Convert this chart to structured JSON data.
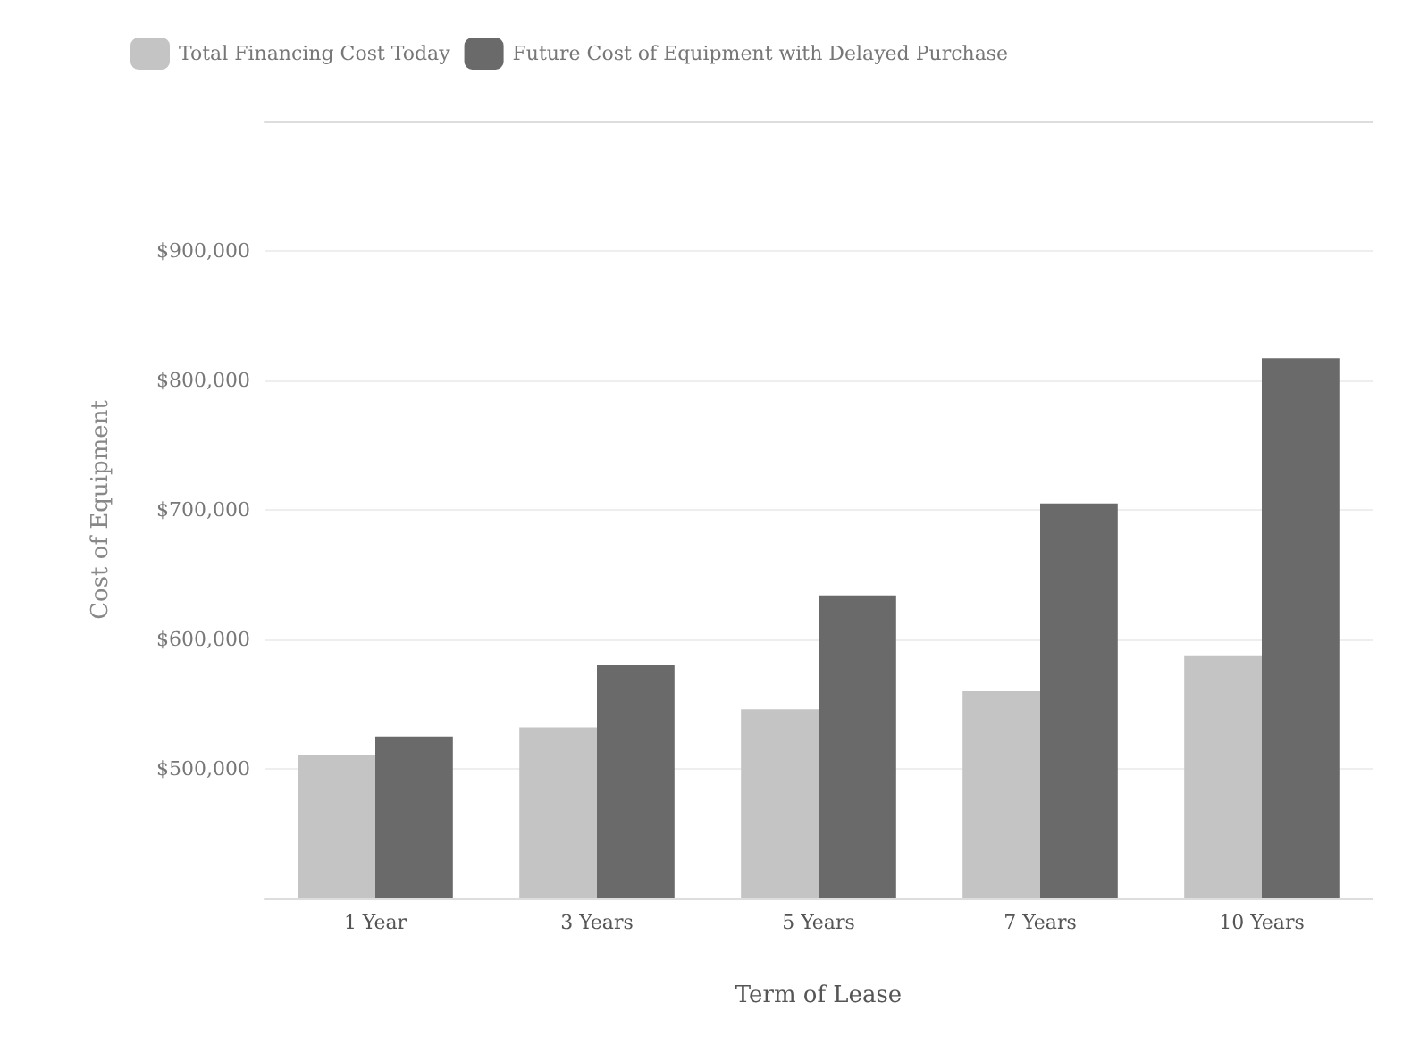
{
  "chart_data": {
    "type": "bar",
    "xlabel": "Term of Lease",
    "ylabel": "Cost of Equipment",
    "categories": [
      "1 Year",
      "3 Years",
      "5 Years",
      "7 Years",
      "10 Years"
    ],
    "series": [
      {
        "name": "Total Financing Cost Today",
        "color": "#c4c4c4",
        "values": [
          511000,
          532000,
          546000,
          560000,
          587000
        ]
      },
      {
        "name": "Future Cost of Equipment with Delayed Purchase",
        "color": "#6a6a6a",
        "values": [
          525000,
          580000,
          634000,
          705000,
          817000
        ]
      }
    ],
    "ylim": [
      400000,
      1000000
    ],
    "yticks": [
      {
        "value": 500000,
        "label": "$500,000"
      },
      {
        "value": 600000,
        "label": "$600,000"
      },
      {
        "value": 700000,
        "label": "$700,000"
      },
      {
        "value": 800000,
        "label": "$800,000"
      },
      {
        "value": 900000,
        "label": "$900,000"
      }
    ],
    "grid": "y",
    "legend": "top left"
  }
}
